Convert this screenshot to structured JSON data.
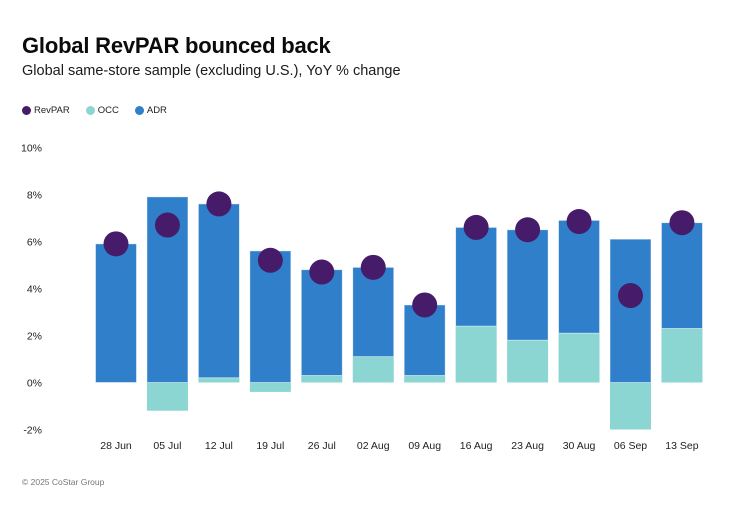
{
  "header": {
    "title": "Global RevPAR bounced back",
    "subtitle": "Global same-store sample (excluding U.S.), YoY % change"
  },
  "footer": {
    "copyright": "© 2025 CoStar Group"
  },
  "colors": {
    "revpar": "#461c6a",
    "occ": "#8bd6d2",
    "adr": "#2f7fca"
  },
  "chart_data": {
    "type": "bar",
    "subtype": "stacked bar with dot overlay",
    "title": "Global RevPAR bounced back",
    "subtitle": "Global same-store sample (excluding U.S.), YoY % change",
    "xlabel": "",
    "ylabel": "",
    "ylim": [
      -2,
      10
    ],
    "yticks": [
      -2,
      0,
      2,
      4,
      6,
      8,
      10
    ],
    "ytick_labels": [
      "-2%",
      "0%",
      "2%",
      "4%",
      "6%",
      "8%",
      "10%"
    ],
    "grid": false,
    "legend_position": "top-left",
    "legend": [
      {
        "name": "RevPAR",
        "color": "#461c6a"
      },
      {
        "name": "OCC",
        "color": "#8bd6d2"
      },
      {
        "name": "ADR",
        "color": "#2f7fca"
      }
    ],
    "categories": [
      "28 Jun",
      "05 Jul",
      "12 Jul",
      "19 Jul",
      "26 Jul",
      "02 Aug",
      "09 Aug",
      "16 Aug",
      "23 Aug",
      "30 Aug",
      "06 Sep",
      "13 Sep"
    ],
    "series": [
      {
        "name": "OCC",
        "kind": "bar",
        "values": [
          0.0,
          -1.2,
          0.2,
          -0.4,
          0.3,
          1.1,
          0.3,
          2.4,
          1.8,
          2.1,
          -2.0,
          2.3
        ]
      },
      {
        "name": "ADR",
        "kind": "bar",
        "values": [
          5.9,
          7.9,
          7.4,
          5.6,
          4.5,
          3.8,
          3.0,
          4.2,
          4.7,
          4.8,
          6.1,
          4.5
        ]
      },
      {
        "name": "RevPAR",
        "kind": "dot",
        "values": [
          5.9,
          6.7,
          7.6,
          5.2,
          4.7,
          4.9,
          3.3,
          6.6,
          6.5,
          6.85,
          3.7,
          6.8
        ]
      }
    ],
    "source": "© 2025 CoStar Group"
  }
}
